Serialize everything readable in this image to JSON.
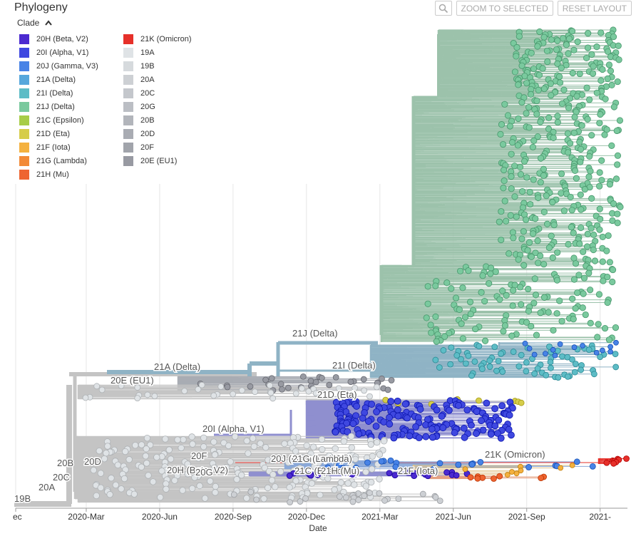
{
  "panel": {
    "title": "Phylogeny"
  },
  "toolbar": {
    "zoom_icon": "magnifier-icon",
    "zoom_to_selected": "ZOOM TO SELECTED",
    "reset_layout": "RESET LAYOUT"
  },
  "legend": {
    "toggle_label": "Clade",
    "items": [
      {
        "label": "20H (Beta, V2)",
        "color": "#4b2ad0"
      },
      {
        "label": "20I (Alpha, V1)",
        "color": "#3f48e0"
      },
      {
        "label": "20J (Gamma, V3)",
        "color": "#4883e6"
      },
      {
        "label": "21A (Delta)",
        "color": "#56a7dc"
      },
      {
        "label": "21I (Delta)",
        "color": "#5dbcc6"
      },
      {
        "label": "21J (Delta)",
        "color": "#7ac99e"
      },
      {
        "label": "21C (Epsilon)",
        "color": "#a8cd48"
      },
      {
        "label": "21D (Eta)",
        "color": "#d6cd4a"
      },
      {
        "label": "21F (Iota)",
        "color": "#f4b13f"
      },
      {
        "label": "21G (Lambda)",
        "color": "#f28a37"
      },
      {
        "label": "21H (Mu)",
        "color": "#ee6531"
      },
      {
        "label": "21K (Omicron)",
        "color": "#e6302a"
      },
      {
        "label": "19A",
        "color": "#dfe3e6"
      },
      {
        "label": "19B",
        "color": "#d6dadd"
      },
      {
        "label": "20A",
        "color": "#cdd0d4"
      },
      {
        "label": "20C",
        "color": "#c4c7cc"
      },
      {
        "label": "20G",
        "color": "#bbbec4"
      },
      {
        "label": "20B",
        "color": "#b2b5bb"
      },
      {
        "label": "20D",
        "color": "#a9acb3"
      },
      {
        "label": "20F",
        "color": "#a1a4ab"
      },
      {
        "label": "20E (EU1)",
        "color": "#989aa2"
      }
    ]
  },
  "chart_data": {
    "type": "scatter",
    "xlabel": "Date",
    "x_ticks": [
      "ec",
      "2020-Mar",
      "2020-Jun",
      "2020-Sep",
      "2020-Dec",
      "2021-Mar",
      "2021-Jun",
      "2021-Sep",
      "2021-"
    ],
    "x_range": [
      "2019-12",
      "2022-01"
    ],
    "grid": true,
    "clade_labels": [
      {
        "label": "21J (Delta)",
        "date": "2021-01",
        "color": "#7ac99e"
      },
      {
        "label": "21A (Delta)",
        "date": "2020-06",
        "color": "#56a7dc"
      },
      {
        "label": "21I (Delta)",
        "date": "2021-01",
        "color": "#5dbcc6"
      },
      {
        "label": "20E (EU1)",
        "date": "2020-05",
        "color": "#989aa2"
      },
      {
        "label": "21D (Eta)",
        "date": "2021-01",
        "color": "#d6cd4a"
      },
      {
        "label": "20I (Alpha, V1)",
        "date": "2020-09",
        "color": "#3f48e0"
      },
      {
        "label": "20F",
        "date": "2020-06",
        "color": "#a1a4ab"
      },
      {
        "label": "20J (Gamma, V3)",
        "date": "2020-11",
        "color": "#4883e6"
      },
      {
        "label": "21G (Lambda)",
        "date": "2020-12",
        "color": "#f28a37"
      },
      {
        "label": "21K (Omicron)",
        "date": "2021-07",
        "color": "#e6302a"
      },
      {
        "label": "20B",
        "date": "2020-02",
        "color": "#b2b5bb"
      },
      {
        "label": "20D",
        "date": "2020-03",
        "color": "#a9acb3"
      },
      {
        "label": "20H (Beta, V2)",
        "date": "2020-06",
        "color": "#4b2ad0"
      },
      {
        "label": "20G",
        "date": "2020-07",
        "color": "#bbbec4"
      },
      {
        "label": "21C (Epsilon)",
        "date": "2020-12",
        "color": "#a8cd48"
      },
      {
        "label": "21H (Mu)",
        "date": "2021-01",
        "color": "#ee6531"
      },
      {
        "label": "21F (Iota)",
        "date": "2021-04",
        "color": "#f4b13f"
      },
      {
        "label": "20C",
        "date": "2020-02",
        "color": "#c4c7cc"
      },
      {
        "label": "20A",
        "date": "2020-01",
        "color": "#cdd0d4"
      },
      {
        "label": "19B",
        "date": "2019-12",
        "color": "#d6dadd"
      }
    ]
  }
}
